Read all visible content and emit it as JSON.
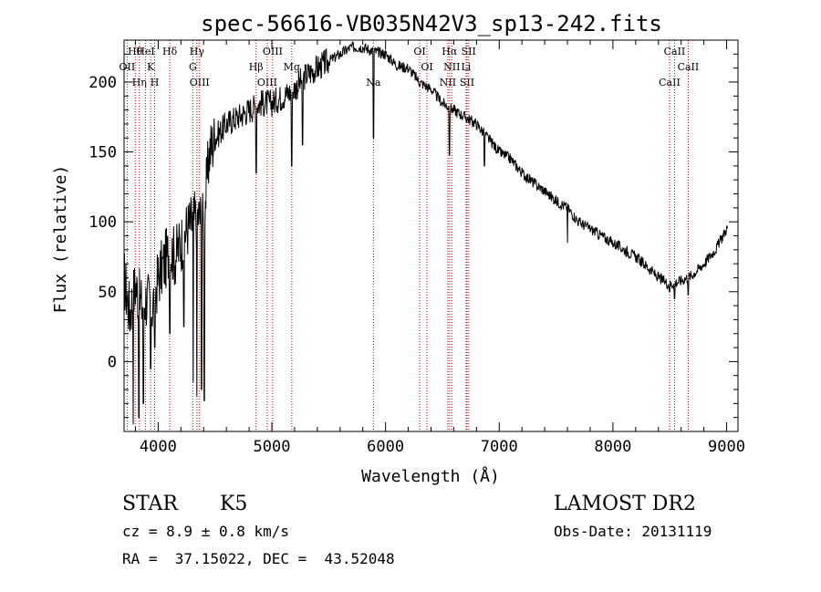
{
  "chart_data": {
    "type": "line",
    "title": "spec-56616-VB035N42V3_sp13-242.fits",
    "xlabel": "Wavelength (Å)",
    "ylabel": "Flux (relative)",
    "xlim": [
      3700,
      9100
    ],
    "ylim": [
      -50,
      230
    ],
    "xticks": [
      4000,
      5000,
      6000,
      7000,
      8000,
      9000
    ],
    "yticks": [
      0,
      50,
      100,
      150,
      200
    ],
    "grid": false,
    "series": [
      {
        "color": "#000000",
        "x": [
          3700,
          3750,
          3800,
          3850,
          3900,
          3950,
          4000,
          4050,
          4100,
          4150,
          4200,
          4250,
          4300,
          4350,
          4400,
          4450,
          4500,
          4600,
          4700,
          4800,
          4900,
          5000,
          5100,
          5200,
          5300,
          5400,
          5500,
          5600,
          5700,
          5800,
          5900,
          6000,
          6100,
          6200,
          6300,
          6400,
          6500,
          6600,
          6700,
          6800,
          6900,
          7000,
          7100,
          7200,
          7300,
          7400,
          7500,
          7600,
          7700,
          7800,
          7900,
          8000,
          8100,
          8200,
          8300,
          8400,
          8500,
          8600,
          8700,
          8800,
          8900,
          9000
        ],
        "y": [
          60,
          35,
          55,
          40,
          45,
          40,
          60,
          70,
          80,
          75,
          85,
          95,
          100,
          105,
          100,
          150,
          160,
          170,
          175,
          180,
          185,
          185,
          190,
          195,
          205,
          210,
          215,
          220,
          225,
          225,
          222,
          220,
          212,
          210,
          200,
          195,
          185,
          180,
          175,
          170,
          160,
          150,
          145,
          135,
          128,
          122,
          115,
          110,
          100,
          95,
          90,
          85,
          80,
          75,
          68,
          60,
          55,
          58,
          62,
          70,
          80,
          95
        ],
        "dips": [
          [
            3780,
            -45
          ],
          [
            3830,
            -40
          ],
          [
            3870,
            -30
          ],
          [
            3934,
            -5
          ],
          [
            3969,
            10
          ],
          [
            4101,
            20
          ],
          [
            4226,
            25
          ],
          [
            4308,
            -15
          ],
          [
            4340,
            -25
          ],
          [
            4383,
            -20
          ],
          [
            4405,
            -28
          ],
          [
            4861,
            135
          ],
          [
            5175,
            140
          ],
          [
            5270,
            155
          ],
          [
            5893,
            160
          ],
          [
            6563,
            148
          ],
          [
            6870,
            140
          ],
          [
            7600,
            85
          ],
          [
            8498,
            50
          ],
          [
            8542,
            45
          ],
          [
            8662,
            48
          ]
        ]
      }
    ],
    "lines": [
      {
        "label": "Hθ",
        "wavelength": 3798
      },
      {
        "label": "OII",
        "wavelength": 3727
      },
      {
        "label": "Hη",
        "wavelength": 3835
      },
      {
        "label": "HeI",
        "wavelength": 3889
      },
      {
        "label": "K",
        "wavelength": 3934
      },
      {
        "label": "H",
        "wavelength": 3969
      },
      {
        "label": "Hδ",
        "wavelength": 4102
      },
      {
        "label": "G",
        "wavelength": 4305
      },
      {
        "label": "OIII",
        "wavelength": 4364
      },
      {
        "label": "Hγ",
        "wavelength": 4341
      },
      {
        "label": "Hβ",
        "wavelength": 4861
      },
      {
        "label": "OIII",
        "wavelength": 4959
      },
      {
        "label": "OIII",
        "wavelength": 5007
      },
      {
        "label": "Mg",
        "wavelength": 5175
      },
      {
        "label": "Na",
        "wavelength": 5893
      },
      {
        "label": "OI",
        "wavelength": 6300
      },
      {
        "label": "OI",
        "wavelength": 6364
      },
      {
        "label": "NII",
        "wavelength": 6548
      },
      {
        "label": "Hα",
        "wavelength": 6563
      },
      {
        "label": "NII",
        "wavelength": 6583
      },
      {
        "label": "SII",
        "wavelength": 6717
      },
      {
        "label": "SII",
        "wavelength": 6731
      },
      {
        "label": "Li",
        "wavelength": 6708
      },
      {
        "label": "CaII",
        "wavelength": 8498
      },
      {
        "label": "CaII",
        "wavelength": 8542
      },
      {
        "label": "CaII",
        "wavelength": 8662
      }
    ],
    "line_color": "#cc0000"
  },
  "info": {
    "object_type": "STAR",
    "subclass": "K5",
    "cz": "cz = 8.9 ± 0.8 km/s",
    "coords": "RA =  37.15022, DEC =  43.52048",
    "survey": "LAMOST DR2",
    "obs_date": "Obs-Date: 20131119"
  }
}
